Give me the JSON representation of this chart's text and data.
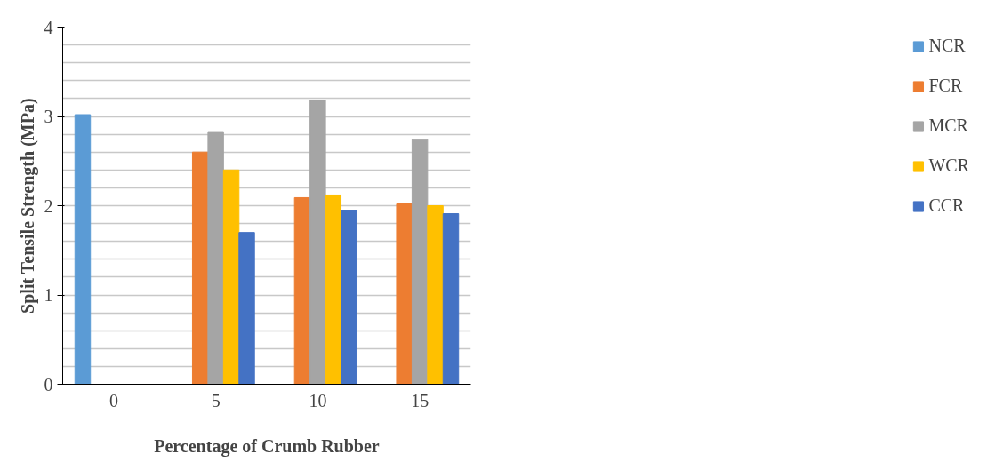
{
  "chart_data": {
    "type": "bar",
    "xlabel": "Percentage of Crumb Rubber",
    "ylabel": "Split Tensile Strength (MPa)",
    "categories": [
      "0",
      "5",
      "10",
      "15"
    ],
    "series": [
      {
        "name": "NCR",
        "color": "#5b9bd5",
        "values": [
          3.02,
          null,
          null,
          null
        ]
      },
      {
        "name": "FCR",
        "color": "#ed7d31",
        "values": [
          null,
          2.6,
          2.09,
          2.02
        ]
      },
      {
        "name": "MCR",
        "color": "#a5a5a5",
        "values": [
          null,
          2.82,
          3.18,
          2.74
        ]
      },
      {
        "name": "WCR",
        "color": "#ffc000",
        "values": [
          null,
          2.4,
          2.12,
          2.0
        ]
      },
      {
        "name": "CCR",
        "color": "#4472c4",
        "values": [
          null,
          1.7,
          1.95,
          1.91
        ]
      }
    ],
    "ylim": [
      0,
      4
    ],
    "yticks": [
      0,
      {
        "value": 0.2,
        "label": null
      },
      {
        "value": 0.4,
        "label": null
      },
      {
        "value": 0.6,
        "label": null
      },
      {
        "value": 0.8,
        "label": null
      },
      1,
      {
        "value": 1.2,
        "label": null
      },
      {
        "value": 1.4,
        "label": null
      },
      {
        "value": 1.6,
        "label": null
      },
      {
        "value": 1.8,
        "label": null
      },
      2,
      {
        "value": 2.2,
        "label": null
      },
      {
        "value": 2.4,
        "label": null
      },
      {
        "value": 2.6,
        "label": null
      },
      {
        "value": 2.8,
        "label": null
      },
      3,
      {
        "value": 3.2,
        "label": null
      },
      {
        "value": 3.4,
        "label": null
      },
      {
        "value": 3.6,
        "label": null
      },
      {
        "value": 3.8,
        "label": null
      },
      4
    ],
    "grid": "y",
    "legend": "right"
  }
}
